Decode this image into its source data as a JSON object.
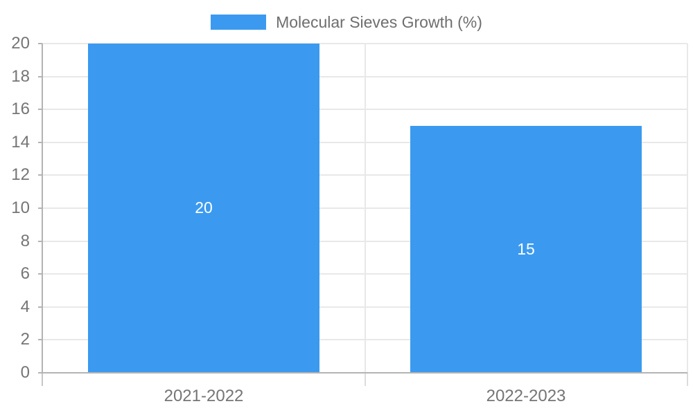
{
  "legend": {
    "label": "Molecular Sieves Growth (%)",
    "swatch_color": "#3B9AF0"
  },
  "chart_data": {
    "type": "bar",
    "title": "",
    "xlabel": "",
    "ylabel": "",
    "categories": [
      "2021-2022",
      "2022-2023"
    ],
    "series": [
      {
        "name": "Molecular Sieves Growth (%)",
        "values": [
          20,
          15
        ]
      }
    ],
    "data_labels": [
      "20",
      "15"
    ],
    "ylim": [
      0,
      20
    ],
    "ytick_step": 2,
    "yticks": [
      0,
      2,
      4,
      6,
      8,
      10,
      12,
      14,
      16,
      18,
      20
    ],
    "grid": true,
    "legend_position": "top",
    "bar_color": "#3B9AF0",
    "data_label_color": "#FFFFFF",
    "grid_color": "#E8E8E8",
    "axis_color": "#B3B3B3",
    "tick_text_color": "#757575"
  }
}
